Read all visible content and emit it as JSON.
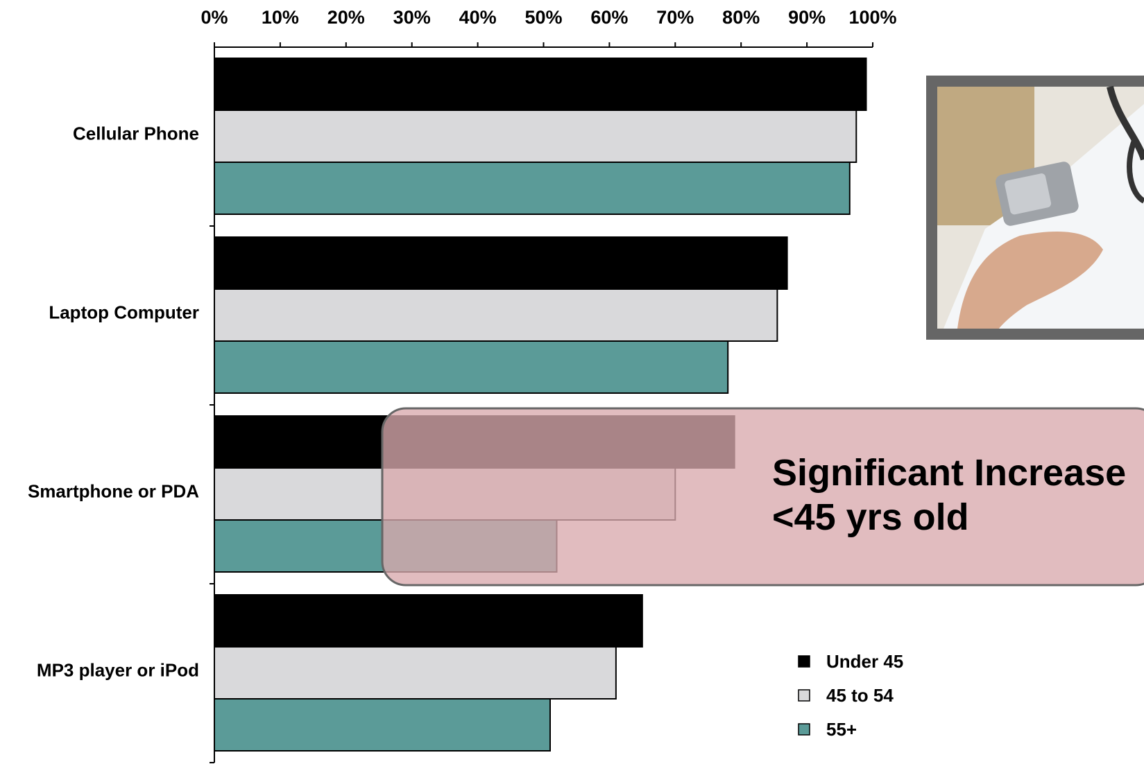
{
  "chart_data": {
    "type": "bar",
    "orientation": "horizontal",
    "categories": [
      "Cellular Phone",
      "Laptop Computer",
      "Smartphone or PDA",
      "MP3 player or iPod"
    ],
    "series": [
      {
        "name": "Under 45",
        "color": "#000000",
        "values": [
          99,
          87,
          79,
          65
        ]
      },
      {
        "name": "45 to 54",
        "color": "#d9d9db",
        "values": [
          97.5,
          85.5,
          70,
          61
        ]
      },
      {
        "name": "55+",
        "color": "#5b9b98",
        "values": [
          96.5,
          78,
          52,
          51
        ]
      }
    ],
    "xlim": [
      0,
      100
    ],
    "x_ticks": [
      "0%",
      "10%",
      "20%",
      "30%",
      "40%",
      "50%",
      "60%",
      "70%",
      "80%",
      "90%",
      "100%"
    ],
    "x_axis_position": "top",
    "grid": false,
    "legend_position": "bottom-right"
  },
  "callout": {
    "line1": "Significant Increase",
    "line2": "<45 yrs old",
    "fill": "#d9a9ad",
    "border": "#666666"
  },
  "photo": {
    "icon": "doctor-holding-phone-photo",
    "frame_color": "#666666"
  }
}
